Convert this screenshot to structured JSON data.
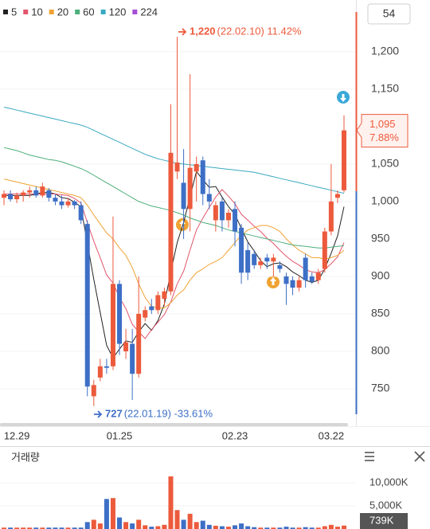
{
  "chart_data": {
    "type": "candlestick",
    "top_badge": "54",
    "grid": true,
    "up_color": "#ec5a3c",
    "down_color": "#3d6fc6",
    "categories": [
      null,
      null,
      "12.29",
      null,
      null,
      null,
      null,
      null,
      null,
      null,
      null,
      null,
      null,
      null,
      null,
      null,
      null,
      null,
      "01.25",
      null,
      null,
      null,
      null,
      null,
      null,
      null,
      null,
      null,
      null,
      null,
      null,
      null,
      null,
      null,
      null,
      null,
      "02.23",
      null,
      null,
      null,
      null,
      null,
      null,
      null,
      null,
      null,
      null,
      null,
      null,
      null,
      null,
      "03.22",
      null,
      null
    ],
    "ohlc": {
      "open": [
        1005,
        1010,
        1003,
        1008,
        1012,
        1015,
        1008,
        1015,
        1005,
        1000,
        995,
        1000,
        995,
        970,
        740,
        765,
        780,
        780,
        890,
        800,
        810,
        770,
        845,
        860,
        855,
        870,
        880,
        1040,
        1025,
        990,
        1040,
        1055,
        1010,
        975,
        1000,
        975,
        990,
        965,
        935,
        930,
        915,
        925,
        920,
        915,
        900,
        895,
        885,
        925,
        900,
        895,
        910,
        960,
        1005,
        1015
      ],
      "high": [
        1015,
        1015,
        1012,
        1015,
        1020,
        1020,
        1025,
        1018,
        1010,
        1008,
        1005,
        1002,
        1000,
        975,
        762,
        790,
        790,
        980,
        895,
        830,
        830,
        900,
        860,
        870,
        880,
        885,
        1130,
        1220,
        1070,
        1170,
        1060,
        1060,
        1030,
        1000,
        1005,
        990,
        1000,
        970,
        945,
        935,
        925,
        930,
        930,
        920,
        905,
        900,
        900,
        930,
        905,
        910,
        965,
        1050,
        1015,
        1115
      ],
      "low": [
        995,
        1000,
        998,
        1000,
        1005,
        1005,
        1005,
        1000,
        995,
        990,
        992,
        990,
        970,
        740,
        727,
        760,
        770,
        775,
        795,
        790,
        735,
        765,
        840,
        850,
        850,
        860,
        875,
        1030,
        950,
        960,
        1000,
        995,
        990,
        960,
        960,
        965,
        940,
        890,
        895,
        910,
        910,
        910,
        900,
        905,
        862,
        875,
        880,
        885,
        890,
        890,
        905,
        955,
        998,
        1012
      ],
      "close": [
        1010,
        1003,
        1008,
        1012,
        1015,
        1008,
        1020,
        1005,
        1000,
        995,
        1000,
        995,
        975,
        753,
        755,
        780,
        778,
        890,
        810,
        812,
        770,
        850,
        855,
        855,
        875,
        880,
        1065,
        1052,
        990,
        1045,
        1050,
        1010,
        1000,
        995,
        975,
        985,
        960,
        905,
        905,
        915,
        920,
        920,
        925,
        910,
        890,
        885,
        895,
        895,
        893,
        905,
        960,
        1000,
        1010,
        1095
      ]
    },
    "series": [
      {
        "name": "5",
        "color": "#222222",
        "values": [
          1008,
          1008,
          1008,
          1008,
          1008,
          1010,
          1012,
          1012,
          1010,
          1005,
          1004,
          999,
          993,
          944,
          896,
          852,
          808,
          791,
          803,
          814,
          812,
          826,
          837,
          828,
          841,
          863,
          906,
          945,
          972,
          1006,
          1040,
          1029,
          1019,
          1020,
          1006,
          993,
          983,
          964,
          946,
          934,
          921,
          913,
          917,
          918,
          913,
          906,
          901,
          895,
          892,
          895,
          910,
          931,
          954,
          993
        ]
      },
      {
        "name": "10",
        "color": "#e2566c",
        "values": [
          1010,
          1010,
          1010,
          1010,
          1010,
          1010,
          1010,
          1010,
          1010,
          1009,
          1008,
          1004,
          998,
          972,
          947,
          925,
          902,
          891,
          872,
          857,
          836,
          826,
          817,
          829,
          839,
          849,
          866,
          890,
          907,
          935,
          962,
          978,
          992,
          1006,
          1016,
          1007,
          997,
          983,
          975,
          967,
          960,
          951,
          944,
          935,
          927,
          920,
          915,
          909,
          906,
          905,
          909,
          917,
          926,
          945
        ]
      },
      {
        "name": "20",
        "color": "#f0a232",
        "values": [
          1030,
          1028,
          1026,
          1024,
          1022,
          1020,
          1018,
          1016,
          1014,
          1012,
          1010,
          1008,
          1005,
          995,
          982,
          970,
          958,
          950,
          938,
          928,
          912,
          890,
          872,
          860,
          858,
          858,
          865,
          875,
          882,
          895,
          905,
          910,
          916,
          920,
          925,
          935,
          945,
          955,
          962,
          965,
          968,
          968,
          965,
          960,
          950,
          942,
          935,
          930,
          925,
          925,
          923,
          925,
          928,
          935
        ]
      },
      {
        "name": "60",
        "color": "#4caf7a",
        "values": [
          1072,
          1070,
          1068,
          1065,
          1062,
          1060,
          1058,
          1056,
          1055,
          1053,
          1050,
          1047,
          1044,
          1040,
          1035,
          1030,
          1025,
          1020,
          1015,
          1010,
          1005,
          1000,
          997,
          994,
          992,
          990,
          988,
          985,
          982,
          978,
          975,
          972,
          970,
          968,
          965,
          962,
          960,
          958,
          956,
          954,
          952,
          950,
          948,
          946,
          944,
          942,
          941,
          940,
          939,
          938,
          938,
          939,
          940,
          941
        ]
      },
      {
        "name": "120",
        "color": "#3aa9c2",
        "values": [
          1126,
          1124,
          1122,
          1120,
          1118,
          1116,
          1114,
          1112,
          1110,
          1108,
          1106,
          1104,
          1102,
          1099,
          1095,
          1091,
          1087,
          1083,
          1079,
          1075,
          1071,
          1067,
          1063,
          1060,
          1057,
          1055,
          1053,
          1051,
          1050,
          1049,
          1048,
          1047,
          1046,
          1045,
          1044,
          1043,
          1042,
          1041,
          1040,
          1039,
          1037,
          1035,
          1033,
          1031,
          1029,
          1027,
          1025,
          1023,
          1021,
          1019,
          1017,
          1015,
          1013,
          1011
        ]
      },
      {
        "name": "224",
        "color": "#a64fd4"
      }
    ],
    "ylim": [
      700,
      1269
    ],
    "yticks": [
      {
        "value": 1200,
        "label": "1,200"
      },
      {
        "value": 1150,
        "label": "1,150"
      },
      {
        "value": 1050,
        "label": "1,050"
      },
      {
        "value": 1000,
        "label": "1,000"
      },
      950,
      900,
      850,
      800,
      750
    ],
    "high_note": {
      "value": 1220,
      "label": "1,220",
      "detail": "(22.02.10) 11.42%"
    },
    "low_note": {
      "value": 727,
      "label": "727",
      "detail": "(22.01.19) -33.61%"
    },
    "current": {
      "value": 1095,
      "label": "1,095",
      "change": "7.88%"
    },
    "volume": {
      "title": "거래량",
      "values": [
        300,
        300,
        300,
        300,
        300,
        300,
        300,
        300,
        300,
        300,
        300,
        300,
        300,
        1500,
        2000,
        1200,
        6500,
        6700,
        2500,
        1500,
        1200,
        2000,
        800,
        500,
        600,
        900,
        11400,
        4100,
        2000,
        3300,
        1500,
        1800,
        900,
        700,
        600,
        500,
        800,
        1200,
        600,
        400,
        300,
        300,
        300,
        300,
        500,
        300,
        300,
        400,
        300,
        300,
        600,
        900,
        500,
        739
      ],
      "ylim": [
        0,
        14500
      ],
      "yticks": [
        {
          "value": 5000,
          "label": "5,000K"
        },
        {
          "value": 10000,
          "label": "10,000K"
        }
      ],
      "current": {
        "value": 739,
        "label": "739K"
      }
    }
  }
}
